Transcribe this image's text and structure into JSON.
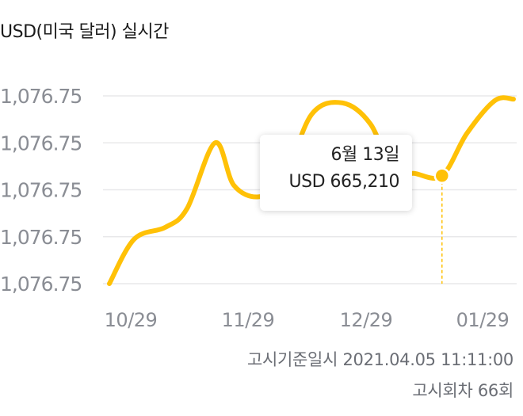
{
  "header": {
    "title": "USD(미국 달러) 실시간"
  },
  "tooltip": {
    "date": "6월 13일",
    "value": "USD 665,210"
  },
  "footer": {
    "notice_datetime": "고시기준일시 2021.04.05 11:11:00",
    "notice_round": "고시회차 66회"
  },
  "colors": {
    "line": "#FFC107",
    "grid": "#E8E8EA",
    "tick_label": "#8A8D94"
  },
  "chart_data": {
    "type": "line",
    "title": "USD(미국 달러) 실시간",
    "xlabel": "",
    "ylabel": "",
    "x_tick_labels": [
      "10/29",
      "11/29",
      "12/29",
      "01/29"
    ],
    "y_tick_labels": [
      "1,076.75",
      "1,076.75",
      "1,076.75",
      "1,076.75",
      "1,076.75"
    ],
    "ylim_level": [
      0,
      4
    ],
    "grid": true,
    "legend": "none",
    "series": [
      {
        "color": "#FFC107",
        "points": [
          [
            0.0,
            0.0
          ],
          [
            0.16,
            0.95
          ],
          [
            0.36,
            1.2
          ],
          [
            0.5,
            1.6
          ],
          [
            0.68,
            3.0
          ],
          [
            0.8,
            2.1
          ],
          [
            0.96,
            1.85
          ],
          [
            1.12,
            2.2
          ],
          [
            1.3,
            3.6
          ],
          [
            1.5,
            3.85
          ],
          [
            1.68,
            3.4
          ],
          [
            1.82,
            2.4
          ],
          [
            1.96,
            2.35
          ],
          [
            2.14,
            2.3
          ],
          [
            2.3,
            3.2
          ],
          [
            2.48,
            3.9
          ],
          [
            2.6,
            3.93
          ]
        ]
      }
    ],
    "selected": {
      "x": 2.14,
      "y": 2.3,
      "label_date": "6월 13일",
      "label_value": "USD 665,210"
    }
  }
}
